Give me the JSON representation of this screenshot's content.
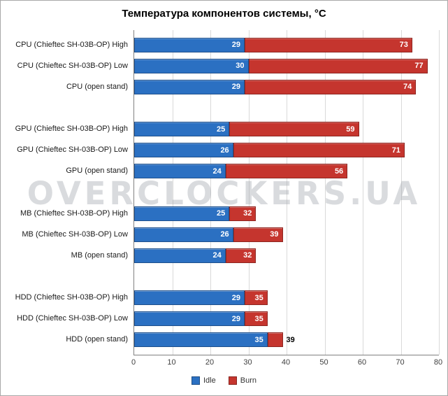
{
  "chart_data": {
    "type": "bar",
    "orientation": "horizontal",
    "title": "Температура компонентов системы, °C",
    "watermark": "OVERCLOCKERS.UA",
    "xlim": [
      0,
      80
    ],
    "x_ticks": [
      0,
      10,
      20,
      30,
      40,
      50,
      60,
      70,
      80
    ],
    "grid": "vertical",
    "legend_position": "bottom",
    "legend": [
      "Idle",
      "Burn"
    ],
    "series_colors": {
      "idle": "#2b70c2",
      "burn": "#c5352e"
    },
    "rows": [
      {
        "label": "CPU (Chieftec SH-03B-OP) High",
        "idle": 29,
        "burn": 73
      },
      {
        "label": "CPU (Chieftec SH-03B-OP) Low",
        "idle": 30,
        "burn": 77
      },
      {
        "label": "CPU (open stand)",
        "idle": 29,
        "burn": 74
      },
      {
        "label": "GPU (Chieftec SH-03B-OP) High",
        "idle": 25,
        "burn": 59
      },
      {
        "label": "GPU (Chieftec SH-03B-OP) Low",
        "idle": 26,
        "burn": 71
      },
      {
        "label": "GPU (open stand)",
        "idle": 24,
        "burn": 56
      },
      {
        "label": "MB (Chieftec SH-03B-OP) High",
        "idle": 25,
        "burn": 32
      },
      {
        "label": "MB (Chieftec SH-03B-OP) Low",
        "idle": 26,
        "burn": 39
      },
      {
        "label": "MB (open stand)",
        "idle": 24,
        "burn": 32
      },
      {
        "label": "HDD (Chieftec SH-03B-OP) High",
        "idle": 29,
        "burn": 35
      },
      {
        "label": "HDD (Chieftec SH-03B-OP) Low",
        "idle": 29,
        "burn": 35
      },
      {
        "label": "HDD (open stand)",
        "idle": 35,
        "burn": 39
      }
    ]
  }
}
